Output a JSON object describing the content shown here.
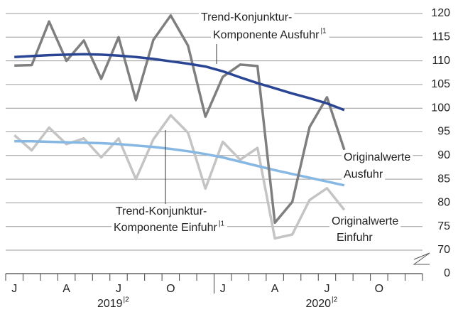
{
  "chart_data": {
    "type": "line",
    "categories": [
      "J",
      null,
      null,
      "A",
      null,
      null,
      "J",
      null,
      null,
      "O",
      null,
      null,
      "J",
      null,
      null,
      "A",
      null,
      null,
      "J",
      null,
      null,
      "O",
      null,
      null
    ],
    "x_groups": [
      {
        "label": "2019",
        "note": "|2",
        "start": 0
      },
      {
        "label": "2020",
        "note": "|2",
        "start": 12
      }
    ],
    "ylim": [
      70,
      120
    ],
    "yticks": [
      70,
      75,
      80,
      85,
      90,
      95,
      100,
      105,
      110,
      115,
      120
    ],
    "baseline_tick": 0,
    "grid": true,
    "series": [
      {
        "label": [
          "Originalwerte",
          "Einfuhr"
        ],
        "color": "#c4c4c4",
        "values": [
          94.3,
          91.1,
          95.9,
          92.4,
          93.6,
          89.6,
          93.6,
          85,
          93.4,
          98.5,
          94.8,
          83,
          92.9,
          89.1,
          91.6,
          72.5,
          73.3,
          80.6,
          83.1,
          78.5,
          null,
          null,
          null,
          null
        ]
      },
      {
        "label": [
          "Trend-Konjunktur-",
          "Komponente Einfuhr"
        ],
        "note": "|1",
        "color": "#86b8e3",
        "values": [
          93,
          93,
          92.9,
          92.8,
          92.7,
          92.6,
          92.4,
          92.1,
          91.8,
          91.4,
          90.9,
          90.3,
          89.6,
          88.7,
          87.8,
          86.9,
          86.1,
          85.3,
          84.5,
          83.7,
          null,
          null,
          null,
          null
        ]
      },
      {
        "label": [
          "Originalwerte",
          "Ausfuhr"
        ],
        "color": "#7f7f7f",
        "values": [
          109,
          109.1,
          118.3,
          110,
          114.3,
          106.2,
          115,
          101.7,
          114.4,
          119.6,
          113.2,
          98.2,
          106.6,
          109.2,
          108.9,
          75.8,
          80.2,
          96,
          102.3,
          91.2,
          null,
          null,
          null,
          null
        ]
      },
      {
        "label": [
          "Trend-Konjunktur-",
          "Komponente Ausfuhr"
        ],
        "note": "|1",
        "color": "#2b4595",
        "values": [
          110.8,
          111,
          111.2,
          111.3,
          111.4,
          111.3,
          111.1,
          110.8,
          110.4,
          109.9,
          109.4,
          108.8,
          107.8,
          106.5,
          105.3,
          104.2,
          103.1,
          102.1,
          101,
          99.6,
          null,
          null,
          null,
          null
        ]
      }
    ]
  }
}
